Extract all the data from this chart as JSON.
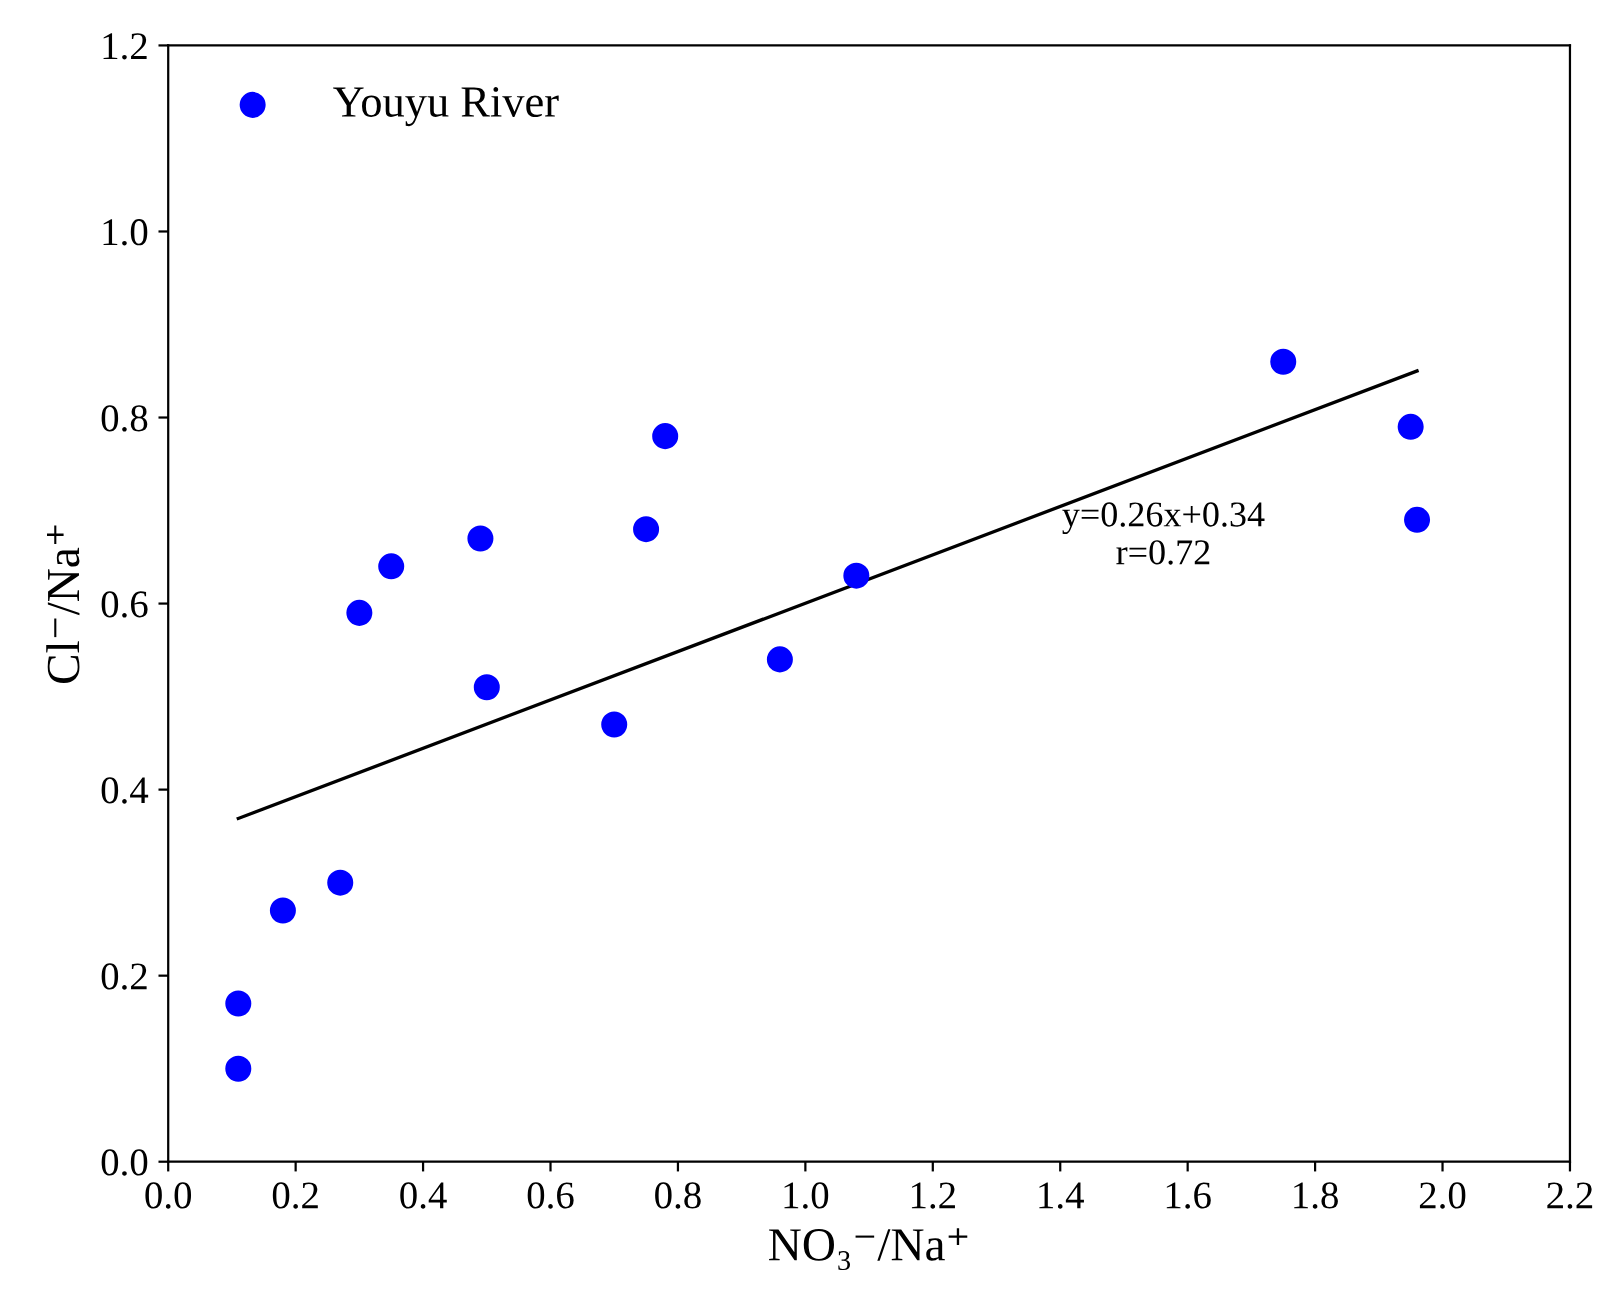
{
  "chart_data": {
    "type": "scatter",
    "xlabel": "NO₃⁻/Na⁺",
    "ylabel": "Cl⁻/Na⁺",
    "xlim": [
      0.0,
      2.2
    ],
    "ylim": [
      0.0,
      1.2
    ],
    "xticks": [
      {
        "value": 0,
        "label": "0.0"
      },
      {
        "value": 0.2,
        "label": "0.2"
      },
      {
        "value": 0.4,
        "label": "0.4"
      },
      {
        "value": 0.6,
        "label": "0.6"
      },
      {
        "value": 0.8,
        "label": "0.8"
      },
      {
        "value": 1.0,
        "label": "1.0"
      },
      {
        "value": 1.2,
        "label": "1.2"
      },
      {
        "value": 1.4,
        "label": "1.4"
      },
      {
        "value": 1.6,
        "label": "1.6"
      },
      {
        "value": 1.8,
        "label": "1.8"
      },
      {
        "value": 2.0,
        "label": "2.0"
      },
      {
        "value": 2.2,
        "label": "2.2"
      }
    ],
    "yticks": [
      {
        "value": 0,
        "label": "0.0"
      },
      {
        "value": 0.2,
        "label": "0.2"
      },
      {
        "value": 0.4,
        "label": "0.4"
      },
      {
        "value": 0.6,
        "label": "0.6"
      },
      {
        "value": 0.8,
        "label": "0.8"
      },
      {
        "value": 1.0,
        "label": "1.0"
      },
      {
        "value": 1.2,
        "label": "1.2"
      }
    ],
    "series": [
      {
        "name": "Youyu River",
        "color": "#0000ff",
        "marker": "circle",
        "x": [
          0.11,
          0.11,
          0.18,
          0.27,
          0.3,
          0.35,
          0.49,
          0.5,
          0.7,
          0.75,
          0.78,
          0.96,
          1.08,
          1.75,
          1.95,
          1.96
        ],
        "values": [
          0.1,
          0.17,
          0.27,
          0.3,
          0.59,
          0.64,
          0.67,
          0.51,
          0.47,
          0.68,
          0.78,
          0.54,
          0.63,
          0.86,
          0.79,
          0.69
        ]
      },
      {
        "type": "line",
        "color": "#000000",
        "line_style": "solid",
        "x": [
          0.11,
          1.96
        ],
        "values": [
          0.369,
          0.85
        ]
      }
    ],
    "annotations": [
      "y=0.26x+0.34\nr=0.72"
    ],
    "legend": "top left",
    "grid": false
  }
}
